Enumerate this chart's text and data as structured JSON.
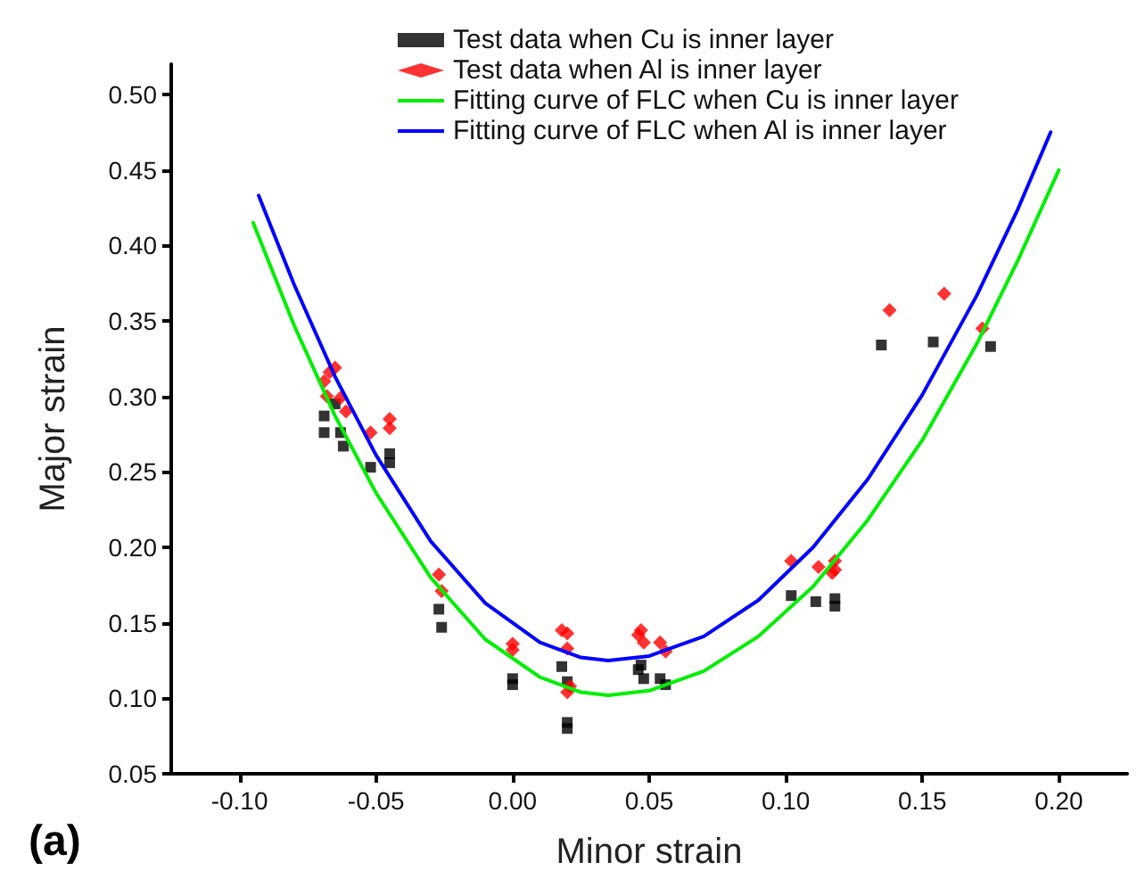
{
  "chart_data": {
    "type": "scatter",
    "xlabel": "Minor strain",
    "ylabel": "Major strain",
    "annotations": [
      "(a)"
    ],
    "xlim": [
      -0.125,
      0.225
    ],
    "xticks": [
      {
        "value": -0.1,
        "label": "-0.10"
      },
      -0.05,
      {
        "value": 0,
        "label": "0.00"
      },
      0.05,
      {
        "value": 0.1,
        "label": "0.10"
      },
      0.15,
      {
        "value": 0.2,
        "label": "0.20"
      }
    ],
    "ylim": [
      0.05,
      0.52
    ],
    "yticks": [
      0.05,
      {
        "value": 0.1,
        "label": "0.10"
      },
      0.15,
      {
        "value": 0.2,
        "label": "0.20"
      },
      0.25,
      {
        "value": 0.3,
        "label": "0.30"
      },
      0.35,
      {
        "value": 0.4,
        "label": "0.40"
      },
      0.45,
      {
        "value": 0.5,
        "label": "0.50"
      }
    ],
    "grid": false,
    "legend": "top",
    "series": [
      {
        "name": "Test data when Cu is inner layer",
        "marker": "square",
        "color": "#000000",
        "x": [
          -0.069,
          -0.069,
          -0.063,
          -0.062,
          -0.065,
          -0.052,
          -0.045,
          -0.045,
          -0.027,
          -0.026,
          0.0,
          0.0,
          0.018,
          0.02,
          0.02,
          0.02,
          0.046,
          0.047,
          0.048,
          0.054,
          0.056,
          0.135,
          0.154,
          0.175,
          0.102,
          0.111,
          0.118,
          0.118
        ],
        "values": [
          0.287,
          0.276,
          0.276,
          0.267,
          0.295,
          0.253,
          0.262,
          0.256,
          0.159,
          0.147,
          0.113,
          0.109,
          0.121,
          0.111,
          0.08,
          0.084,
          0.119,
          0.122,
          0.113,
          0.113,
          0.109,
          0.334,
          0.336,
          0.333,
          0.168,
          0.164,
          0.166,
          0.161
        ]
      },
      {
        "name": "Test data when Al is inner layer",
        "marker": "diamond",
        "color": "#ff0000",
        "x": [
          -0.065,
          -0.067,
          -0.069,
          -0.068,
          -0.063,
          -0.061,
          -0.052,
          -0.045,
          -0.045,
          -0.027,
          -0.026,
          0.0,
          0.0,
          0.018,
          0.02,
          0.02,
          0.02,
          0.021,
          0.046,
          0.047,
          0.048,
          0.054,
          0.056,
          0.138,
          0.158,
          0.172,
          0.102,
          0.112,
          0.118,
          0.118,
          0.117
        ],
        "values": [
          0.319,
          0.316,
          0.31,
          0.3,
          0.299,
          0.29,
          0.276,
          0.285,
          0.279,
          0.182,
          0.171,
          0.136,
          0.132,
          0.145,
          0.143,
          0.133,
          0.104,
          0.108,
          0.142,
          0.145,
          0.137,
          0.137,
          0.131,
          0.357,
          0.368,
          0.345,
          0.191,
          0.187,
          0.191,
          0.185,
          0.183
        ]
      },
      {
        "name": "Fitting curve of FLC when Cu is inner layer",
        "type": "line",
        "marker": "none",
        "color": "#00ee00",
        "x": [
          -0.095,
          -0.08,
          -0.065,
          -0.05,
          -0.03,
          -0.01,
          0.01,
          0.025,
          0.035,
          0.05,
          0.07,
          0.09,
          0.11,
          0.13,
          0.15,
          0.17,
          0.185,
          0.2
        ],
        "values": [
          0.415,
          0.347,
          0.287,
          0.236,
          0.18,
          0.139,
          0.114,
          0.104,
          0.102,
          0.105,
          0.118,
          0.141,
          0.174,
          0.218,
          0.271,
          0.335,
          0.39,
          0.45
        ]
      },
      {
        "name": "Fitting curve of FLC when Al is inner layer",
        "type": "line",
        "marker": "none",
        "color": "#0000ff",
        "x": [
          -0.093,
          -0.08,
          -0.065,
          -0.05,
          -0.03,
          -0.01,
          0.01,
          0.025,
          0.035,
          0.05,
          0.07,
          0.09,
          0.11,
          0.13,
          0.15,
          0.17,
          0.185,
          0.197
        ],
        "values": [
          0.433,
          0.374,
          0.313,
          0.261,
          0.204,
          0.163,
          0.137,
          0.127,
          0.125,
          0.128,
          0.141,
          0.165,
          0.2,
          0.245,
          0.301,
          0.367,
          0.424,
          0.475
        ]
      }
    ]
  }
}
